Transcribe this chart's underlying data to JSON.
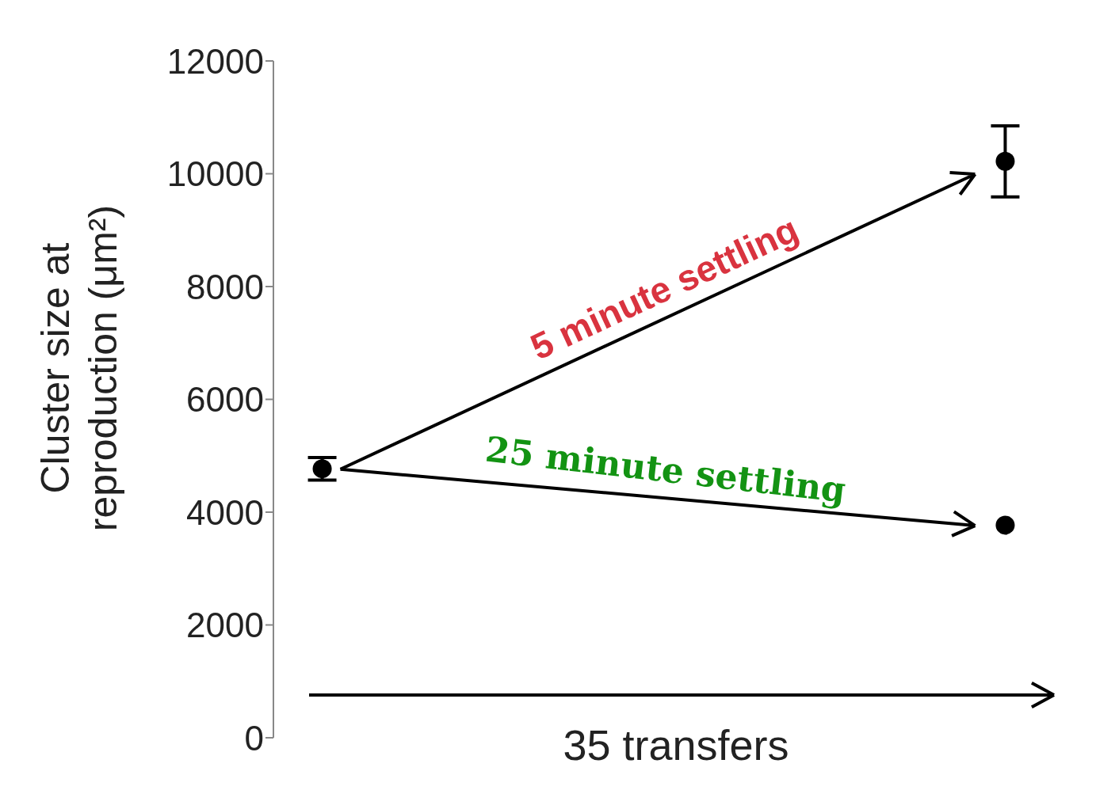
{
  "chart_data": {
    "type": "scatter",
    "ylabel": "Cluster size at reproduction (μm²)",
    "categories": [
      null,
      null,
      null,
      null,
      null,
      null,
      null,
      null
    ],
    "series": [
      {
        "color": "#000000",
        "values": [
          4770,
          null,
          null,
          null,
          null,
          null,
          null,
          10220
        ],
        "errors": [
          200,
          null,
          null,
          null,
          null,
          null,
          null,
          630
        ]
      },
      {
        "color": "#000000",
        "values": [
          null,
          null,
          null,
          null,
          null,
          null,
          null,
          3770
        ],
        "errors": [
          null,
          null,
          null,
          null,
          null,
          null,
          null,
          null
        ]
      }
    ],
    "ylim": [
      0,
      12000
    ],
    "yticks": [
      0,
      2000,
      4000,
      6000,
      8000,
      10000,
      12000
    ],
    "marker": "circle",
    "grid": false,
    "legend": false,
    "tick_labels": "y",
    "annotations": [
      "5 minute settling",
      "25 minute settling",
      "35 transfers"
    ]
  }
}
